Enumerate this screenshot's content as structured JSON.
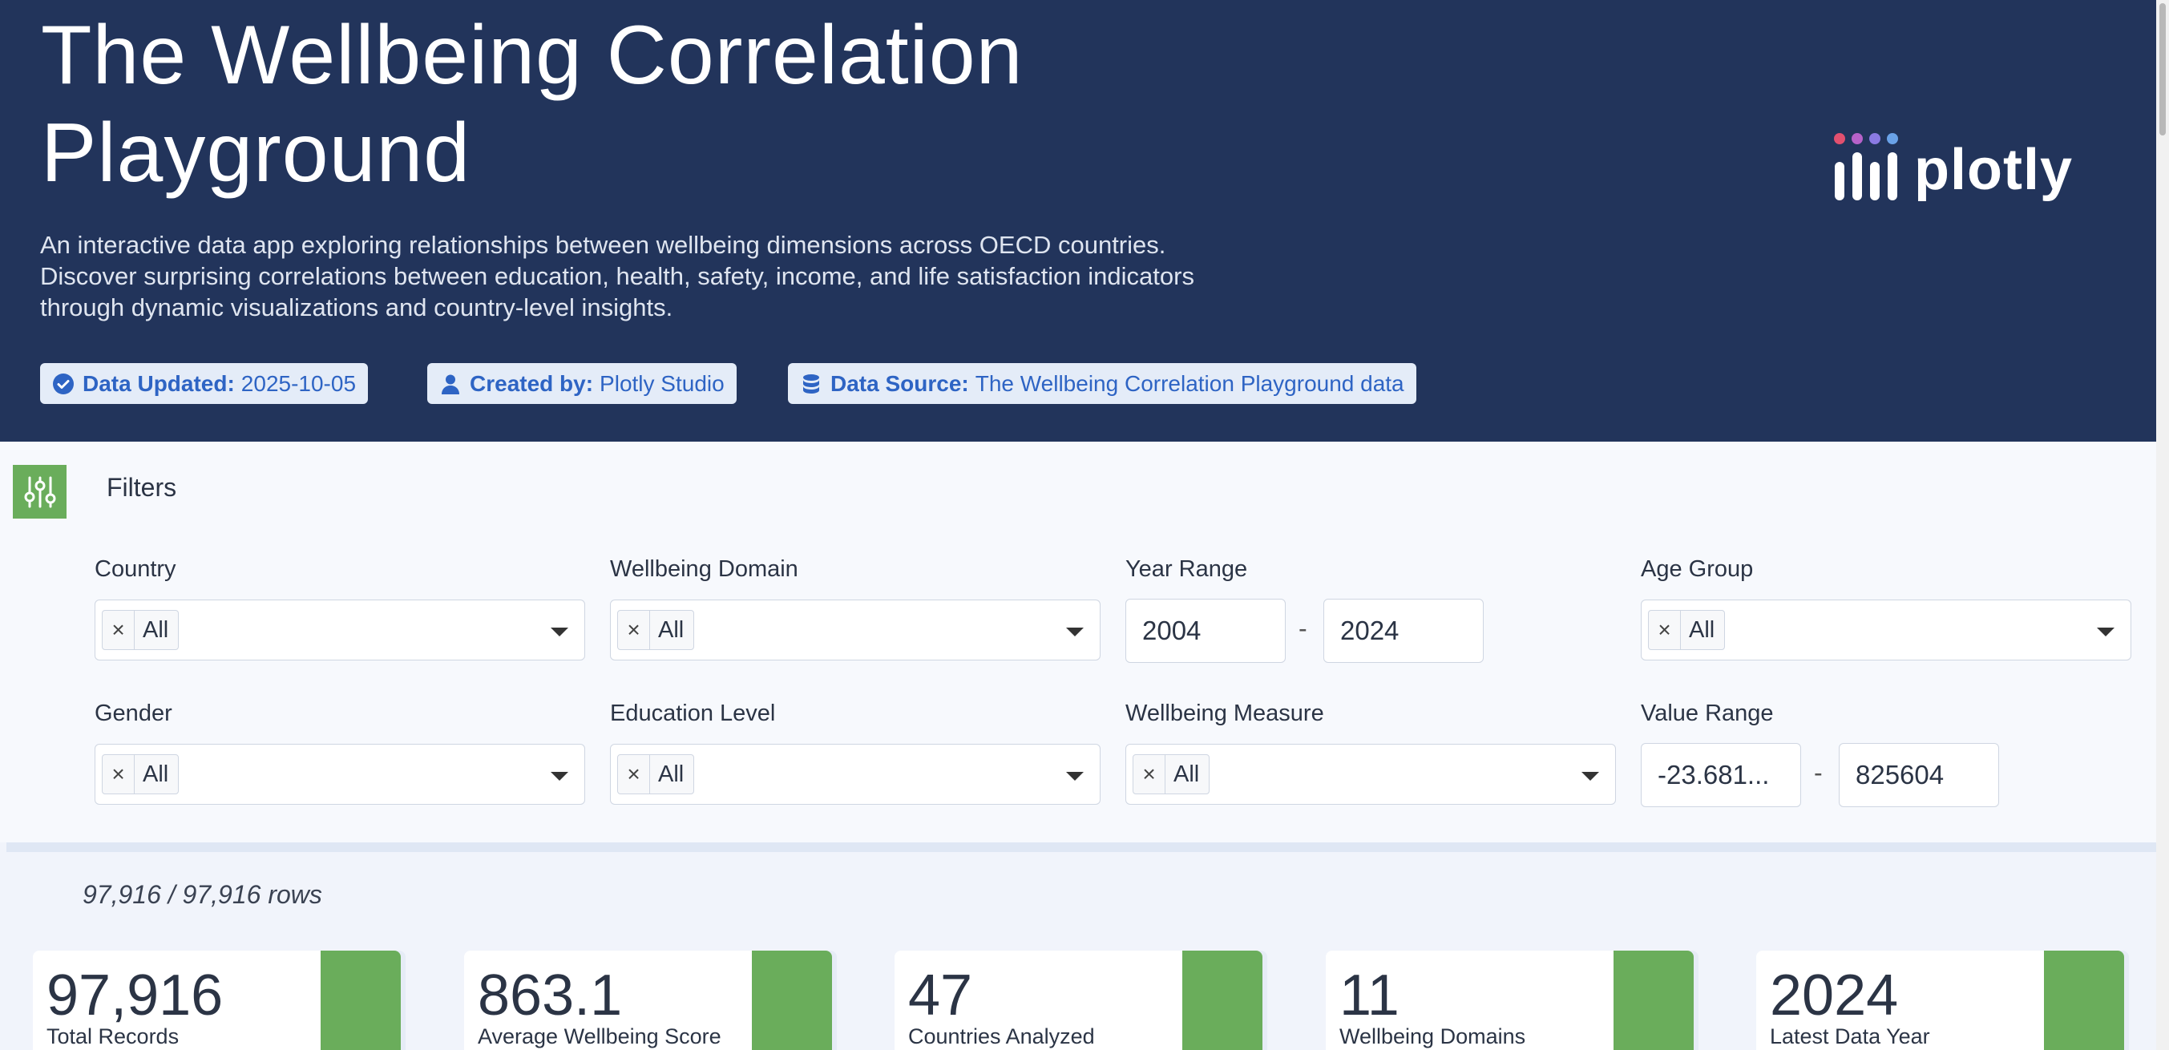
{
  "header": {
    "title_line1": "The Wellbeing Correlation",
    "title_line2": "Playground",
    "subtitle_line1": "An interactive data app exploring relationships between wellbeing dimensions across OECD countries.",
    "subtitle_line2": "Discover surprising correlations between education, health, safety, income, and life satisfaction indicators",
    "subtitle_line3": "through dynamic visualizations and country-level insights.",
    "badges": [
      {
        "key": "Data Updated:",
        "value": "2025-10-05",
        "icon": "check-circle-icon"
      },
      {
        "key": "Created by:",
        "value": "Plotly Studio",
        "icon": "user-icon"
      },
      {
        "key": "Data Source:",
        "value": "The Wellbeing Correlation Playground data",
        "icon": "database-icon"
      }
    ],
    "logo_text": "plotly",
    "colors": {
      "background": "#22345b",
      "badge_bg": "#e4ecf8",
      "badge_text": "#2e64c4"
    }
  },
  "filters": {
    "title": "Filters",
    "country": {
      "label": "Country",
      "chip": "All"
    },
    "domain": {
      "label": "Wellbeing Domain",
      "chip": "All"
    },
    "year_range": {
      "label": "Year Range",
      "min": "2004",
      "max": "2024",
      "separator": "-"
    },
    "age_group": {
      "label": "Age Group",
      "chip": "All"
    },
    "gender": {
      "label": "Gender",
      "chip": "All"
    },
    "education": {
      "label": "Education Level",
      "chip": "All"
    },
    "measure": {
      "label": "Wellbeing Measure",
      "chip": "All"
    },
    "value_range": {
      "label": "Value Range",
      "min": "-23.681...",
      "max": "825604",
      "separator": "-"
    },
    "chip_remove": "×",
    "accent": "#6aad5b"
  },
  "row_count": "97,916 / 97,916 rows",
  "kpis": [
    {
      "value": "97,916",
      "label": "Total Records"
    },
    {
      "value": "863.1",
      "label": "Average Wellbeing Score"
    },
    {
      "value": "47",
      "label": "Countries Analyzed"
    },
    {
      "value": "11",
      "label": "Wellbeing Domains"
    },
    {
      "value": "2024",
      "label": "Latest Data Year"
    }
  ]
}
